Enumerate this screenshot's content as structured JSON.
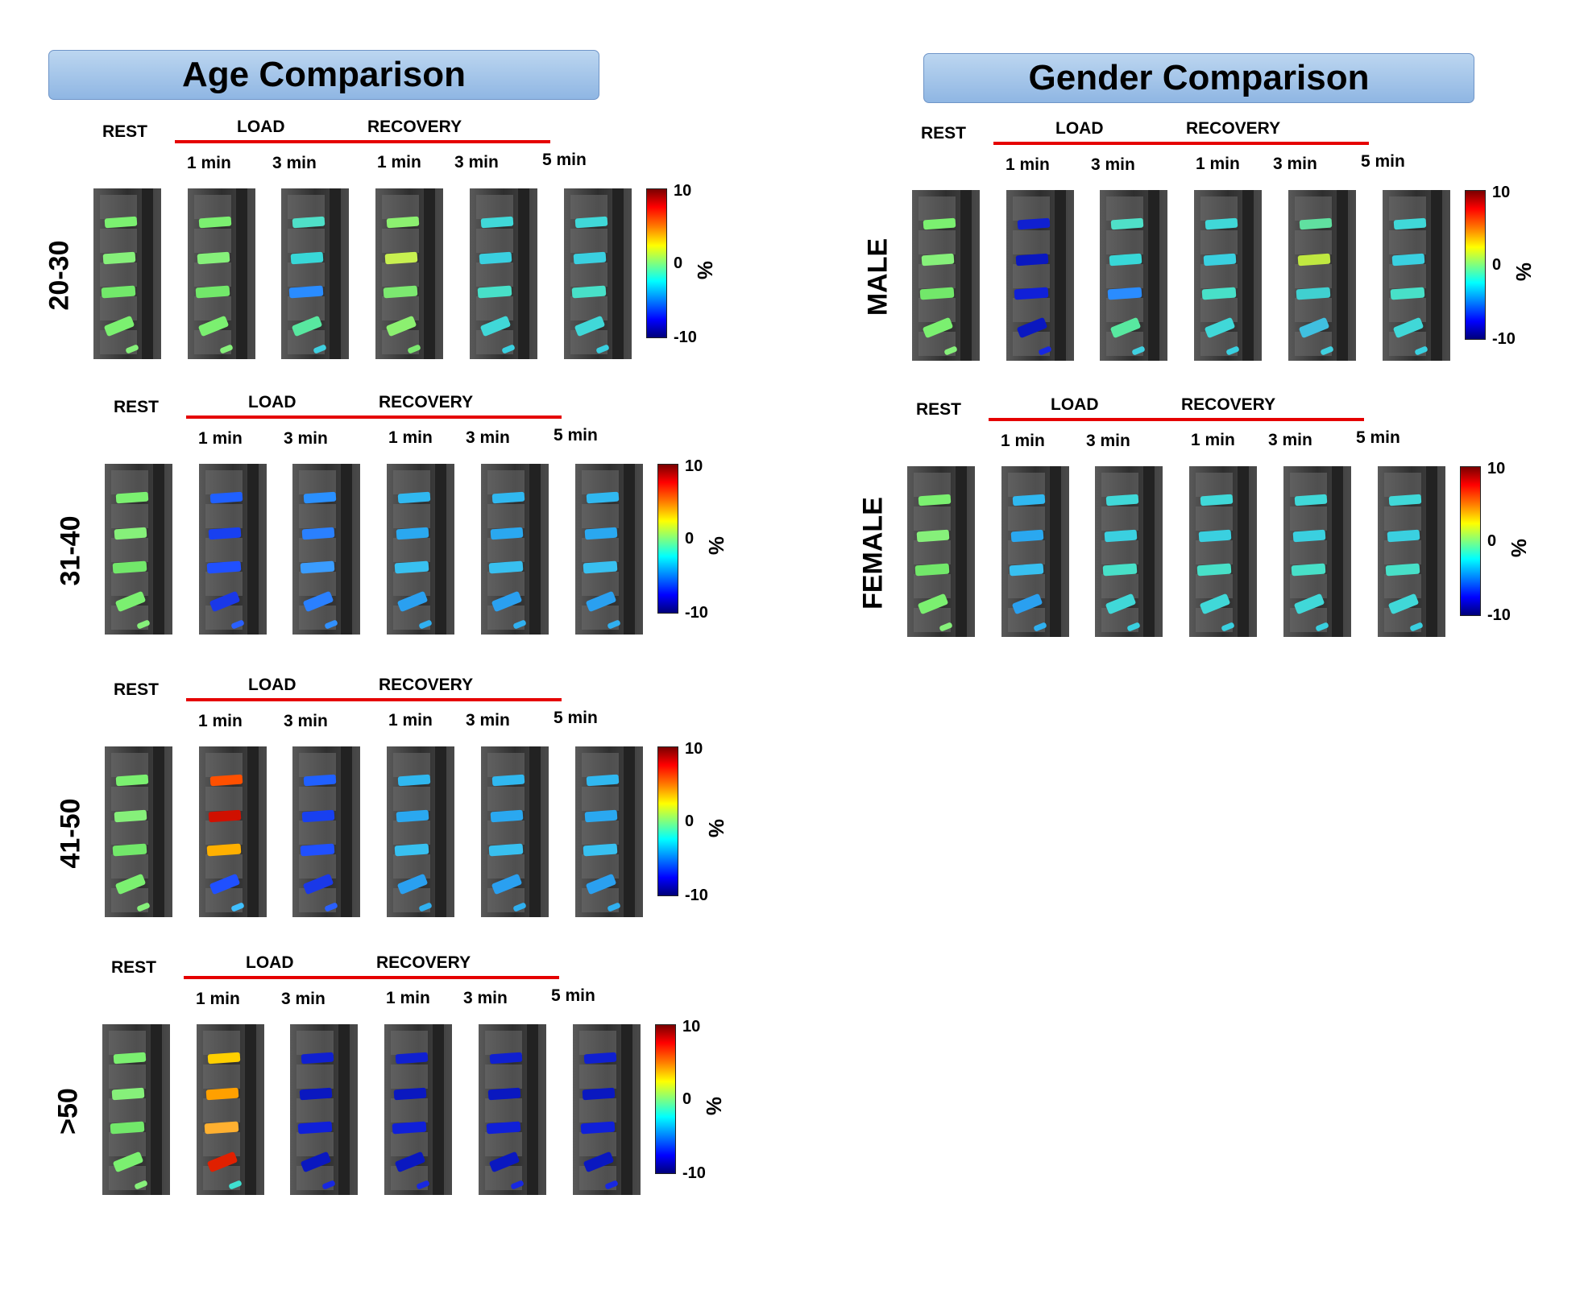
{
  "age_title": "Age Comparison",
  "gender_title": "Gender Comparison",
  "headers": {
    "rest": "REST",
    "load": "LOAD",
    "recovery": "RECOVERY",
    "t1": "1 min",
    "t3": "3 min",
    "t5": "5 min"
  },
  "colorbar": {
    "max": "10",
    "mid": "0",
    "min": "-10",
    "unit": "%"
  },
  "age_rows": [
    {
      "label": "20-30",
      "images": [
        "green",
        "green",
        "cyan-mix",
        "green-yellow",
        "cyan",
        "cyan"
      ]
    },
    {
      "label": "31-40",
      "images": [
        "green",
        "blue",
        "blue-cyan",
        "cyan-blue",
        "cyan-blue",
        "cyan-blue"
      ]
    },
    {
      "label": "41-50",
      "images": [
        "green",
        "red-yellow",
        "blue",
        "cyan-blue",
        "cyan-blue",
        "cyan-blue"
      ]
    },
    {
      "label": ">50",
      "images": [
        "green",
        "yellow-red",
        "deep-blue",
        "deep-blue",
        "deep-blue",
        "deep-blue"
      ]
    }
  ],
  "gender_rows": [
    {
      "label": "MALE",
      "images": [
        "green",
        "deep-blue",
        "cyan-mix",
        "cyan",
        "cyan-yellow",
        "cyan"
      ]
    },
    {
      "label": "FEMALE",
      "images": [
        "green",
        "cyan-blue",
        "cyan",
        "cyan",
        "cyan",
        "cyan"
      ]
    }
  ]
}
